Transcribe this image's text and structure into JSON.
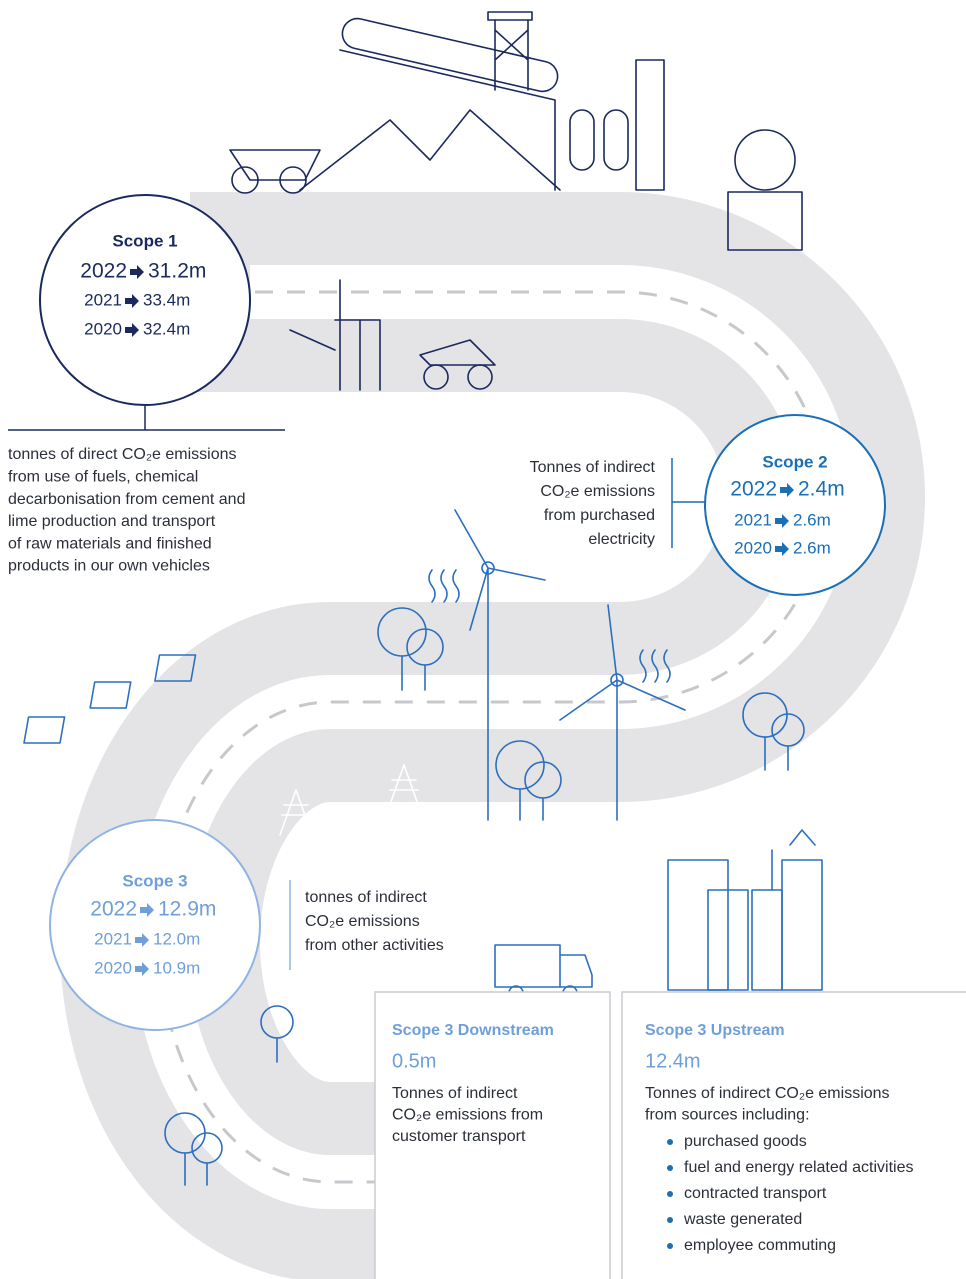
{
  "scope1": {
    "title": "Scope 1",
    "rows": [
      {
        "year": "2022",
        "value": "31.2m"
      },
      {
        "year": "2021",
        "value": "33.4m"
      },
      {
        "year": "2020",
        "value": "32.4m"
      }
    ],
    "description": [
      "tonnes of direct CO₂e emissions",
      "from use of fuels, chemical",
      "decarbonisation from cement and",
      "lime production and transport",
      "of raw materials and finished",
      "products in our own vehicles"
    ]
  },
  "scope2": {
    "title": "Scope 2",
    "rows": [
      {
        "year": "2022",
        "value": "2.4m"
      },
      {
        "year": "2021",
        "value": "2.6m"
      },
      {
        "year": "2020",
        "value": "2.6m"
      }
    ],
    "description": [
      "Tonnes of indirect",
      "CO₂e emissions",
      "from purchased",
      "electricity"
    ]
  },
  "scope3": {
    "title": "Scope 3",
    "rows": [
      {
        "year": "2022",
        "value": "12.9m"
      },
      {
        "year": "2021",
        "value": "12.0m"
      },
      {
        "year": "2020",
        "value": "10.9m"
      }
    ],
    "description": [
      "tonnes of indirect",
      "CO₂e emissions",
      "from other activities"
    ]
  },
  "downstream": {
    "title": "Scope 3 Downstream",
    "value": "0.5m",
    "description": [
      "Tonnes of indirect",
      "CO₂e emissions from",
      "customer transport"
    ]
  },
  "upstream": {
    "title": "Scope 3 Upstream",
    "value": "12.4m",
    "description": [
      "Tonnes of indirect CO₂e emissions",
      "from sources including:"
    ],
    "items": [
      "purchased goods",
      "fuel and energy related activities",
      "contracted transport",
      "waste generated",
      "employee commuting"
    ]
  }
}
